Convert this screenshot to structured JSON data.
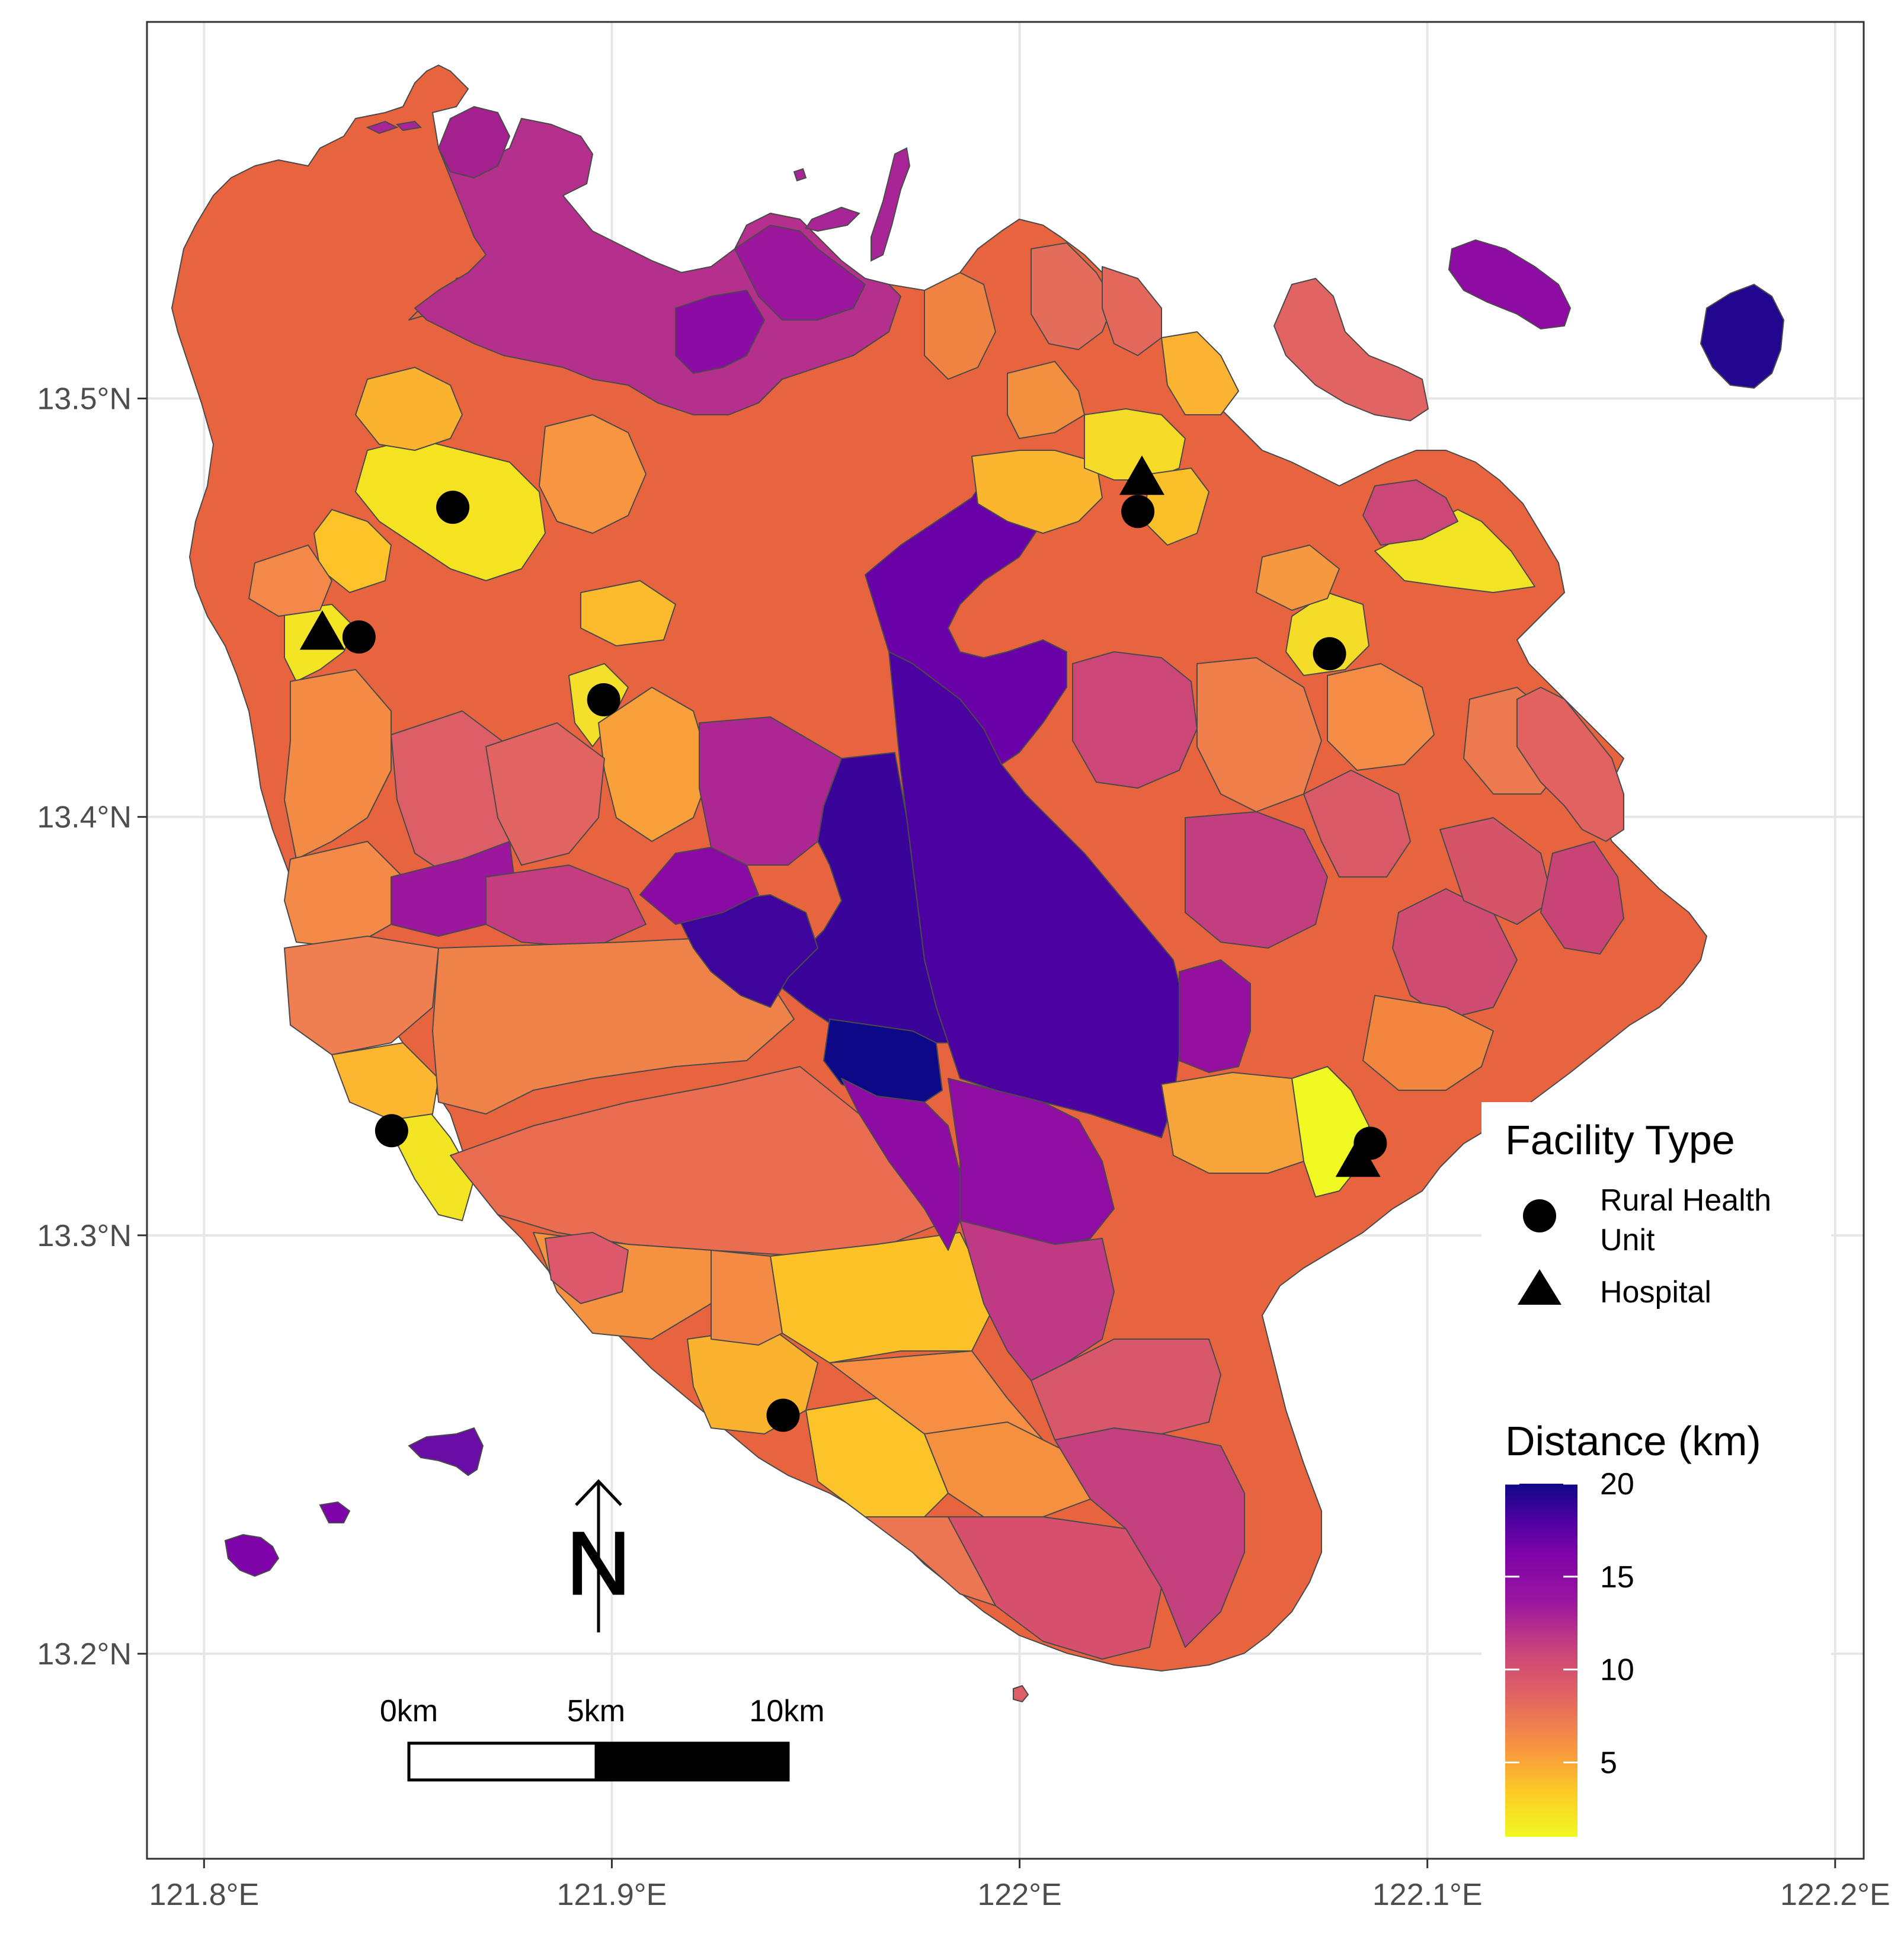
{
  "map": {
    "x_ticks": [
      {
        "value": 121.8,
        "label": "121.8°E"
      },
      {
        "value": 121.9,
        "label": "121.9°E"
      },
      {
        "value": 122.0,
        "label": "122°E"
      },
      {
        "value": 122.1,
        "label": "122.1°E"
      },
      {
        "value": 122.2,
        "label": "122.2°E"
      }
    ],
    "y_ticks": [
      {
        "value": 13.5,
        "label": "13.5°N"
      },
      {
        "value": 13.4,
        "label": "13.4°N"
      },
      {
        "value": 13.3,
        "label": "13.3°N"
      },
      {
        "value": 13.2,
        "label": "13.2°N"
      }
    ],
    "xlim": [
      121.786,
      122.207
    ],
    "ylim": [
      13.151,
      13.59
    ],
    "grid": true,
    "colors": {
      "low": "#f0f921",
      "mid_low": "#f89540",
      "mid": "#cc4778",
      "mid_high": "#7e03a8",
      "high": "#0d0887",
      "grid": "#e6e6e6",
      "border": "#333333"
    }
  },
  "facilities": {
    "title": "Facility Type",
    "types": [
      {
        "label_line1": "Rural Health",
        "label_line2": "Unit",
        "symbol": "circle"
      },
      {
        "label_line1": "Hospital",
        "symbol": "triangle"
      }
    ],
    "points": [
      {
        "type": "circle",
        "lon": 121.861,
        "lat": 13.474
      },
      {
        "type": "circle",
        "lon": 121.838,
        "lat": 13.443
      },
      {
        "type": "circle",
        "lon": 121.898,
        "lat": 13.428
      },
      {
        "type": "circle",
        "lon": 121.846,
        "lat": 13.325
      },
      {
        "type": "circle",
        "lon": 121.942,
        "lat": 13.257
      },
      {
        "type": "circle",
        "lon": 122.029,
        "lat": 13.473
      },
      {
        "type": "circle",
        "lon": 122.076,
        "lat": 13.439
      },
      {
        "type": "circle",
        "lon": 122.086,
        "lat": 13.322
      },
      {
        "type": "triangle",
        "lon": 121.829,
        "lat": 13.444
      },
      {
        "type": "triangle",
        "lon": 122.03,
        "lat": 13.481
      },
      {
        "type": "triangle",
        "lon": 122.083,
        "lat": 13.318
      }
    ]
  },
  "distance_legend": {
    "title": "Distance (km)",
    "ticks": [
      {
        "value": 20,
        "label": "20"
      },
      {
        "value": 15,
        "label": "15"
      },
      {
        "value": 10,
        "label": "10"
      },
      {
        "value": 5,
        "label": "5"
      }
    ],
    "min": 1,
    "max": 20,
    "palette": "plasma"
  },
  "scale_bar": {
    "labels": [
      "0km",
      "5km",
      "10km"
    ]
  },
  "north_arrow": {
    "label": "N"
  }
}
